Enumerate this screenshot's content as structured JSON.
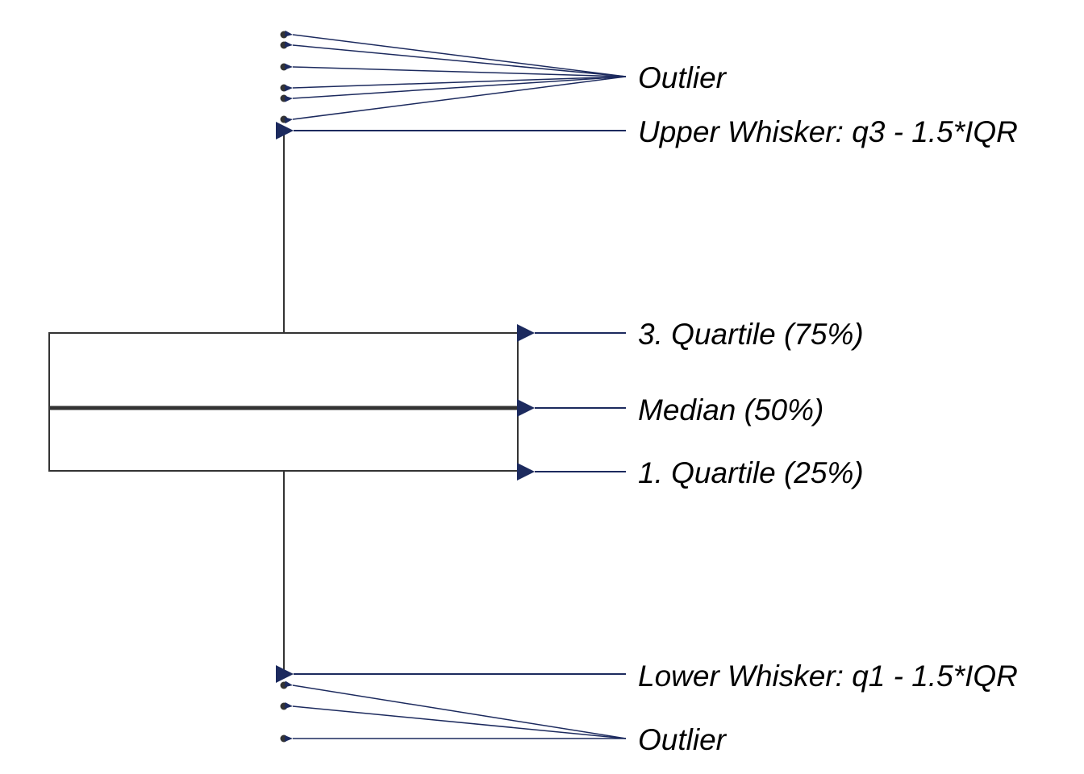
{
  "colors": {
    "arrow": "#1c2a5e",
    "box_line": "#333333",
    "point": "#333333",
    "background": "#ffffff"
  },
  "labels": {
    "outlier_upper": "Outlier",
    "upper_whisker": "Upper Whisker: q3 - 1.5*IQR",
    "q3": "3. Quartile (75%)",
    "median": "Median (50%)",
    "q1": "1. Quartile (25%)",
    "lower_whisker": "Lower Whisker: q1 - 1.5*IQR",
    "outlier_lower": "Outlier"
  }
}
